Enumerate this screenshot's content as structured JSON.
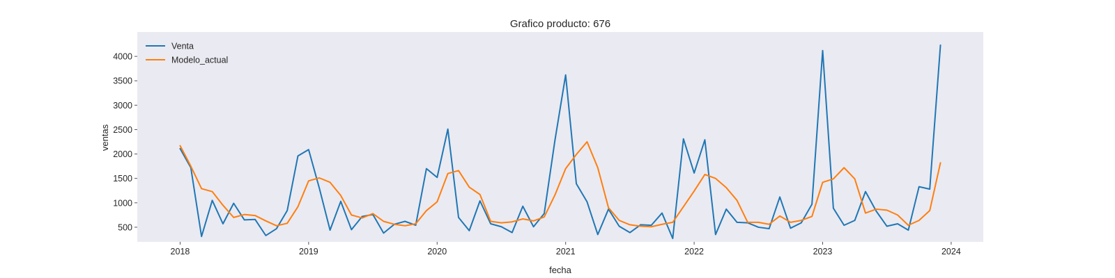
{
  "chart_data": {
    "type": "line",
    "title": "Grafico producto: 676",
    "xlabel": "fecha",
    "ylabel": "ventas",
    "x_start": "2018-01",
    "x_end": "2023-12",
    "frequency": "monthly",
    "xlim": [
      "2017-09",
      "2024-04"
    ],
    "ylim": [
      200,
      4500
    ],
    "xticks": [
      "2018",
      "2019",
      "2020",
      "2021",
      "2022",
      "2023",
      "2024"
    ],
    "yticks": [
      500,
      1000,
      1500,
      2000,
      2500,
      3000,
      3500,
      4000
    ],
    "grid": false,
    "legend_position": "top-left",
    "background": "#eaeaf2",
    "series": [
      {
        "name": "Venta",
        "color": "#1f77b4",
        "values": [
          2110,
          1720,
          310,
          1050,
          570,
          990,
          650,
          660,
          330,
          470,
          840,
          1960,
          2090,
          1300,
          440,
          1030,
          450,
          720,
          760,
          380,
          560,
          620,
          540,
          1700,
          1520,
          2510,
          700,
          430,
          1040,
          570,
          510,
          390,
          930,
          510,
          780,
          2280,
          3620,
          1390,
          1020,
          350,
          870,
          520,
          390,
          550,
          540,
          790,
          270,
          2310,
          1610,
          2290,
          350,
          870,
          600,
          590,
          500,
          470,
          1120,
          480,
          590,
          970,
          4120,
          890,
          540,
          640,
          1230,
          830,
          520,
          570,
          440,
          1330,
          1280,
          4230
        ]
      },
      {
        "name": "Modelo_actual",
        "color": "#ff7f0e",
        "values": [
          2170,
          1750,
          1290,
          1230,
          950,
          700,
          760,
          740,
          630,
          530,
          580,
          920,
          1450,
          1510,
          1420,
          1150,
          750,
          690,
          780,
          620,
          560,
          530,
          570,
          840,
          1020,
          1600,
          1660,
          1320,
          1170,
          620,
          590,
          610,
          670,
          630,
          710,
          1160,
          1700,
          1990,
          2250,
          1720,
          900,
          640,
          550,
          520,
          510,
          560,
          600,
          920,
          1240,
          1580,
          1500,
          1310,
          1050,
          600,
          600,
          560,
          730,
          600,
          640,
          720,
          1420,
          1490,
          1720,
          1490,
          790,
          870,
          850,
          750,
          540,
          640,
          840,
          1820
        ]
      }
    ]
  }
}
